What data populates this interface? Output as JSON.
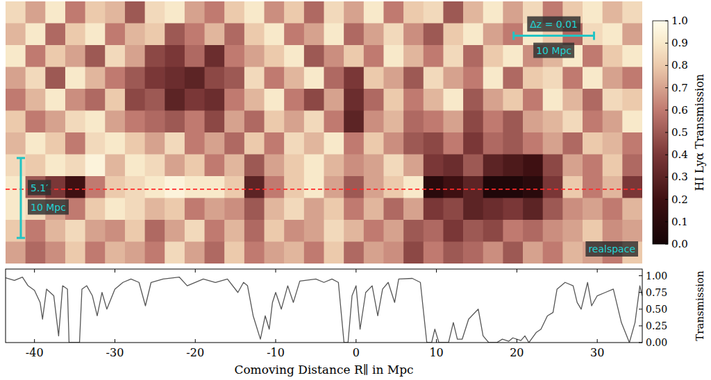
{
  "chart_data": [
    {
      "type": "heatmap",
      "xlim": [
        -43.6,
        35.6
      ],
      "ylim": [
        -9.3,
        23.5
      ],
      "tick_labels": false,
      "color_range": [
        0,
        1
      ],
      "color_ticks": [
        {
          "value": 0,
          "label": "0.0"
        },
        0.1,
        0.2,
        0.3,
        0.4,
        0.5,
        0.6,
        0.7,
        0.8,
        0.9,
        {
          "value": 1,
          "label": "1.0"
        }
      ],
      "color_label": "HI Lyα Transmission",
      "sightline": 0,
      "scale_bars": [
        {
          "label": "Δz = 0.01",
          "sub_label": "10 Mpc",
          "x": [
            19.6,
            29.6
          ],
          "y": 19.2
        },
        {
          "label": "5.1′",
          "sub_label": "10 Mpc",
          "x": -41.7,
          "y": [
            -6.1,
            3.9
          ]
        }
      ],
      "annotations": [
        "realspace"
      ],
      "cells": [
        [
          0.85,
          0.7,
          0.9,
          0.6,
          0.8,
          0.75,
          0.5,
          0.85,
          0.9,
          0.7,
          0.6,
          0.8,
          0.9,
          0.65,
          0.8,
          0.55,
          0.85,
          0.7,
          0.9,
          0.6,
          0.8,
          0.85,
          0.5,
          0.75,
          0.9,
          0.7,
          0.85,
          0.6,
          0.8,
          0.9,
          0.75,
          0.85
        ],
        [
          0.75,
          0.9,
          0.55,
          0.8,
          0.9,
          0.6,
          0.75,
          0.8,
          0.5,
          0.6,
          0.75,
          0.55,
          0.8,
          0.9,
          0.6,
          0.7,
          0.9,
          0.55,
          0.7,
          0.85,
          0.65,
          0.5,
          0.8,
          0.9,
          0.7,
          0.6,
          0.9,
          0.8,
          0.55,
          0.85,
          0.9,
          0.7
        ],
        [
          0.9,
          0.6,
          0.8,
          0.7,
          0.5,
          0.85,
          0.7,
          0.45,
          0.4,
          0.55,
          0.35,
          0.6,
          0.7,
          0.8,
          0.9,
          0.5,
          0.65,
          0.8,
          0.6,
          0.9,
          0.75,
          0.6,
          0.85,
          0.55,
          0.8,
          0.9,
          0.65,
          0.75,
          0.9,
          0.6,
          0.8,
          0.9
        ],
        [
          0.7,
          0.85,
          0.5,
          0.9,
          0.75,
          0.6,
          0.5,
          0.4,
          0.35,
          0.3,
          0.45,
          0.5,
          0.85,
          0.6,
          0.75,
          0.9,
          0.55,
          0.4,
          0.8,
          0.7,
          0.5,
          0.85,
          0.7,
          0.6,
          0.9,
          0.55,
          0.8,
          0.85,
          0.6,
          0.9,
          0.7,
          0.6
        ],
        [
          0.6,
          0.75,
          0.9,
          0.65,
          0.55,
          0.8,
          0.45,
          0.5,
          0.3,
          0.4,
          0.35,
          0.6,
          0.75,
          0.9,
          0.6,
          0.45,
          0.7,
          0.35,
          0.55,
          0.8,
          0.6,
          0.75,
          0.9,
          0.5,
          0.7,
          0.8,
          0.6,
          0.9,
          0.75,
          0.55,
          0.85,
          0.8
        ],
        [
          0.8,
          0.6,
          0.7,
          0.85,
          0.9,
          0.7,
          0.6,
          0.55,
          0.5,
          0.6,
          0.45,
          0.7,
          0.55,
          0.8,
          0.7,
          0.85,
          0.6,
          0.3,
          0.65,
          0.75,
          0.55,
          0.6,
          0.7,
          0.45,
          0.6,
          0.5,
          0.7,
          0.75,
          0.85,
          0.6,
          0.7,
          0.9
        ],
        [
          0.75,
          0.9,
          0.8,
          0.6,
          0.85,
          0.9,
          0.8,
          0.7,
          0.85,
          0.6,
          0.7,
          0.55,
          0.8,
          0.6,
          0.85,
          0.75,
          0.9,
          0.6,
          0.8,
          0.65,
          0.5,
          0.45,
          0.6,
          0.4,
          0.55,
          0.5,
          0.6,
          0.7,
          0.55,
          0.8,
          0.75,
          0.6
        ],
        [
          0.85,
          0.8,
          0.9,
          0.85,
          0.95,
          0.75,
          0.9,
          0.85,
          0.7,
          0.8,
          0.6,
          0.75,
          0.5,
          0.7,
          0.8,
          0.9,
          0.75,
          0.65,
          0.7,
          0.85,
          0.7,
          0.4,
          0.35,
          0.5,
          0.3,
          0.25,
          0.2,
          0.45,
          0.7,
          0.6,
          0.8,
          0.55
        ],
        [
          0.9,
          0.5,
          0.4,
          0.2,
          0.6,
          0.8,
          0.85,
          0.9,
          0.95,
          0.9,
          0.9,
          0.8,
          0.3,
          0.6,
          0.8,
          0.9,
          0.7,
          0.5,
          0.7,
          0.8,
          0.9,
          0.1,
          0.2,
          0.3,
          0.05,
          0.05,
          0.1,
          0.4,
          0.8,
          0.6,
          0.75,
          0.4
        ],
        [
          0.9,
          0.85,
          0.7,
          0.6,
          0.8,
          0.9,
          0.85,
          0.75,
          0.8,
          0.6,
          0.7,
          0.65,
          0.5,
          0.75,
          0.85,
          0.7,
          0.8,
          0.6,
          0.75,
          0.55,
          0.7,
          0.4,
          0.45,
          0.3,
          0.35,
          0.4,
          0.3,
          0.5,
          0.65,
          0.7,
          0.6,
          0.75
        ],
        [
          0.8,
          0.6,
          0.75,
          0.85,
          0.7,
          0.65,
          0.8,
          0.55,
          0.7,
          0.85,
          0.6,
          0.75,
          0.55,
          0.8,
          0.65,
          0.7,
          0.85,
          0.75,
          0.6,
          0.7,
          0.5,
          0.55,
          0.4,
          0.5,
          0.45,
          0.6,
          0.55,
          0.65,
          0.7,
          0.8,
          0.65,
          0.7
        ],
        [
          0.7,
          0.55,
          0.65,
          0.8,
          0.6,
          0.75,
          0.7,
          0.6,
          0.85,
          0.7,
          0.55,
          0.8,
          0.6,
          0.7,
          0.75,
          0.6,
          0.8,
          0.55,
          0.7,
          0.65,
          0.45,
          0.6,
          0.5,
          0.55,
          0.65,
          0.5,
          0.7,
          0.6,
          0.75,
          0.7,
          0.6,
          0.8
        ]
      ]
    },
    {
      "type": "line",
      "x_label": "Comoving Distance R∥ in Mpc",
      "y_label": "Transmission",
      "color": "#555555",
      "xlim": [
        -43.6,
        35.6
      ],
      "ylim": [
        0,
        1.1
      ],
      "xticks": [
        -40,
        -30,
        -20,
        -10,
        0,
        10,
        20,
        30
      ],
      "yticks": [
        {
          "value": 0,
          "label": "0.00"
        },
        0.25,
        {
          "value": 0.5,
          "label": "0.50"
        },
        0.75,
        {
          "value": 1,
          "label": "1.00"
        }
      ],
      "x": [
        -43.6,
        -42.5,
        -41.5,
        -40.8,
        -40.0,
        -39.3,
        -39.0,
        -38.5,
        -37.6,
        -37.0,
        -36.5,
        -35.9,
        -35.7,
        -34.4,
        -34.1,
        -33.5,
        -32.8,
        -32.2,
        -31.6,
        -31.0,
        -30.0,
        -29.0,
        -28.0,
        -27.0,
        -26.2,
        -25.5,
        -24.0,
        -22.0,
        -21.0,
        -19.0,
        -17.5,
        -16.0,
        -14.7,
        -14.0,
        -13.5,
        -12.8,
        -11.9,
        -11.3,
        -10.8,
        -10.4,
        -10.0,
        -9.3,
        -8.5,
        -7.8,
        -7.0,
        -5.0,
        -4.0,
        -3.0,
        -2.2,
        -1.5,
        -1.0,
        -0.5,
        0.0,
        0.5,
        1.2,
        2.0,
        2.7,
        3.3,
        4.0,
        4.8,
        5.3,
        7.0,
        8.0,
        8.8,
        9.4,
        9.8,
        10.3,
        11.5,
        12.1,
        12.6,
        13.2,
        14.0,
        15.2,
        15.8,
        16.5,
        17.5,
        18.2,
        19.0,
        19.5,
        20.5,
        21.0,
        21.5,
        22.4,
        23.0,
        23.8,
        24.5,
        25.0,
        26.0,
        27.0,
        27.5,
        28.0,
        28.8,
        29.3,
        30.0,
        31.0,
        32.0,
        33.0,
        34.0,
        34.7,
        35.3,
        35.6
      ],
      "values": [
        0.97,
        0.93,
        0.98,
        0.85,
        0.78,
        0.6,
        0.35,
        0.8,
        0.7,
        0.1,
        0.85,
        0.8,
        0.0,
        0.0,
        0.8,
        0.85,
        0.7,
        0.4,
        0.75,
        0.5,
        0.8,
        0.9,
        0.95,
        0.9,
        0.55,
        0.9,
        0.95,
        0.98,
        0.85,
        0.95,
        0.9,
        0.95,
        0.75,
        0.9,
        0.85,
        0.4,
        0.05,
        0.4,
        0.2,
        0.6,
        0.75,
        0.5,
        0.85,
        0.6,
        0.92,
        0.95,
        0.9,
        0.95,
        0.9,
        0.0,
        0.0,
        0.7,
        0.85,
        0.2,
        0.75,
        0.85,
        0.4,
        0.8,
        0.9,
        0.6,
        0.95,
        0.96,
        0.9,
        0.0,
        0.0,
        0.2,
        0.0,
        0.0,
        0.3,
        0.05,
        0.05,
        0.35,
        0.5,
        0.1,
        0.0,
        0.0,
        0.05,
        0.02,
        0.07,
        0.03,
        0.1,
        0.0,
        0.15,
        0.2,
        0.4,
        0.45,
        0.8,
        0.9,
        0.85,
        0.6,
        0.5,
        0.9,
        0.55,
        0.7,
        0.75,
        0.8,
        0.3,
        0.0,
        0.3,
        0.85,
        0.7
      ]
    }
  ]
}
